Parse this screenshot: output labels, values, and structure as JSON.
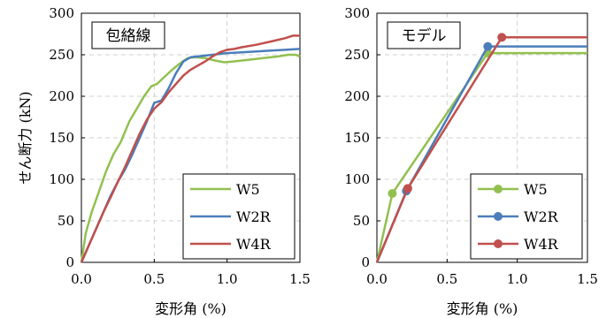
{
  "chart_data": [
    {
      "type": "line",
      "panel_label": "包絡線",
      "xlabel": "変形角 (%)",
      "ylabel": "せん断力 (kN)",
      "xlim": [
        0,
        1.5
      ],
      "ylim": [
        0,
        300
      ],
      "xticks": [
        "0.0",
        "0.5",
        "1.0",
        "1.5"
      ],
      "yticks": [
        "0",
        "50",
        "100",
        "150",
        "200",
        "250",
        "300"
      ],
      "grid": true,
      "legend_position": "bottom-right",
      "markers": false,
      "series": [
        {
          "name": "W5",
          "color": "#92c050",
          "points": [
            [
              0,
              0
            ],
            [
              0.03,
              35
            ],
            [
              0.07,
              60
            ],
            [
              0.12,
              85
            ],
            [
              0.17,
              110
            ],
            [
              0.22,
              130
            ],
            [
              0.27,
              145
            ],
            [
              0.33,
              170
            ],
            [
              0.38,
              185
            ],
            [
              0.43,
              200
            ],
            [
              0.48,
              212
            ],
            [
              0.52,
              215
            ],
            [
              0.58,
              225
            ],
            [
              0.63,
              233
            ],
            [
              0.68,
              240
            ],
            [
              0.73,
              246
            ],
            [
              0.78,
              247
            ],
            [
              0.85,
              246
            ],
            [
              0.92,
              243
            ],
            [
              0.98,
              241
            ],
            [
              1.05,
              242
            ],
            [
              1.15,
              244
            ],
            [
              1.25,
              246
            ],
            [
              1.35,
              248
            ],
            [
              1.42,
              250
            ],
            [
              1.47,
              250
            ],
            [
              1.5,
              248
            ]
          ]
        },
        {
          "name": "W2R",
          "color": "#4a7ebb",
          "points": [
            [
              0,
              0
            ],
            [
              0.05,
              20
            ],
            [
              0.1,
              40
            ],
            [
              0.15,
              60
            ],
            [
              0.2,
              80
            ],
            [
              0.25,
              97
            ],
            [
              0.3,
              112
            ],
            [
              0.35,
              130
            ],
            [
              0.4,
              150
            ],
            [
              0.45,
              170
            ],
            [
              0.5,
              192
            ],
            [
              0.55,
              195
            ],
            [
              0.6,
              210
            ],
            [
              0.65,
              228
            ],
            [
              0.7,
              242
            ],
            [
              0.75,
              247
            ],
            [
              0.8,
              248
            ],
            [
              0.9,
              250
            ],
            [
              1.0,
              252
            ],
            [
              1.1,
              253
            ],
            [
              1.2,
              254
            ],
            [
              1.3,
              255
            ],
            [
              1.4,
              256
            ],
            [
              1.5,
              257
            ]
          ]
        },
        {
          "name": "W4R",
          "color": "#c0504d",
          "points": [
            [
              0,
              0
            ],
            [
              0.05,
              20
            ],
            [
              0.1,
              40
            ],
            [
              0.15,
              60
            ],
            [
              0.2,
              78
            ],
            [
              0.25,
              97
            ],
            [
              0.3,
              115
            ],
            [
              0.35,
              135
            ],
            [
              0.4,
              155
            ],
            [
              0.45,
              172
            ],
            [
              0.5,
              185
            ],
            [
              0.55,
              193
            ],
            [
              0.6,
              205
            ],
            [
              0.65,
              215
            ],
            [
              0.7,
              225
            ],
            [
              0.75,
              232
            ],
            [
              0.8,
              237
            ],
            [
              0.85,
              242
            ],
            [
              0.9,
              248
            ],
            [
              0.95,
              253
            ],
            [
              1.0,
              256
            ],
            [
              1.05,
              257
            ],
            [
              1.1,
              259
            ],
            [
              1.2,
              262
            ],
            [
              1.3,
              266
            ],
            [
              1.4,
              270
            ],
            [
              1.45,
              273
            ],
            [
              1.5,
              273
            ]
          ]
        }
      ]
    },
    {
      "type": "line",
      "panel_label": "モデル",
      "xlabel": "変形角 (%)",
      "ylabel": "",
      "xlim": [
        0,
        1.5
      ],
      "ylim": [
        0,
        300
      ],
      "xticks": [
        "0.0",
        "0.5",
        "1.0",
        "1.5"
      ],
      "yticks": [
        "0",
        "50",
        "100",
        "150",
        "200",
        "250",
        "300"
      ],
      "grid": true,
      "legend_position": "bottom-right",
      "markers": true,
      "series": [
        {
          "name": "W5",
          "color": "#92c050",
          "points": [
            [
              0,
              0
            ],
            [
              0.11,
              83
            ],
            [
              0.79,
              252
            ],
            [
              1.5,
              252
            ]
          ],
          "marked": [
            [
              0.11,
              83
            ],
            [
              0.79,
              252
            ]
          ]
        },
        {
          "name": "W2R",
          "color": "#4a7ebb",
          "points": [
            [
              0,
              0
            ],
            [
              0.21,
              86
            ],
            [
              0.79,
              260
            ],
            [
              1.5,
              260
            ]
          ],
          "marked": [
            [
              0.21,
              86
            ],
            [
              0.79,
              260
            ]
          ]
        },
        {
          "name": "W4R",
          "color": "#c0504d",
          "points": [
            [
              0,
              0
            ],
            [
              0.22,
              89
            ],
            [
              0.89,
              271
            ],
            [
              1.5,
              271
            ]
          ],
          "marked": [
            [
              0.22,
              89
            ],
            [
              0.89,
              271
            ]
          ]
        }
      ]
    }
  ]
}
